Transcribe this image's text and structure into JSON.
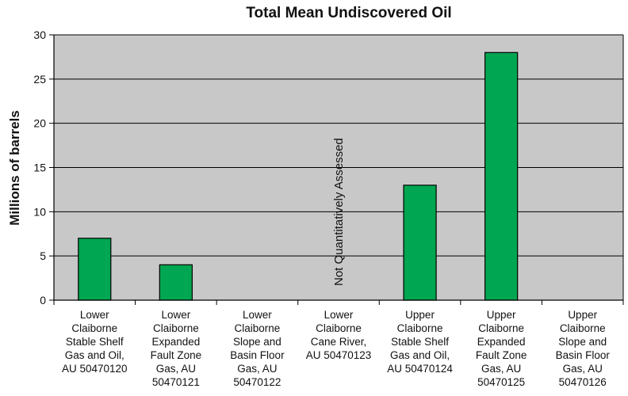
{
  "chart_data": {
    "type": "bar",
    "title": "Total Mean Undiscovered Oil",
    "ylabel": "Millions of barrels",
    "xlabel": "",
    "ylim": [
      0,
      30
    ],
    "yticks": [
      0,
      5,
      10,
      15,
      20,
      25,
      30
    ],
    "grid": true,
    "legend": "none",
    "categories": [
      [
        "Lower",
        "Claiborne",
        "Stable Shelf",
        "Gas and Oil,",
        "AU 50470120"
      ],
      [
        "Lower",
        "Claiborne",
        "Expanded",
        "Fault Zone",
        "Gas, AU",
        "50470121"
      ],
      [
        "Lower",
        "Claiborne",
        "Slope and",
        "Basin Floor",
        "Gas, AU",
        "50470122"
      ],
      [
        "Lower",
        "Claiborne",
        "Cane River,",
        "AU 50470123"
      ],
      [
        "Upper",
        "Claiborne",
        "Stable Shelf",
        "Gas and Oil,",
        "AU 50470124"
      ],
      [
        "Upper",
        "Claiborne",
        "Expanded",
        "Fault Zone",
        "Gas, AU",
        "50470125"
      ],
      [
        "Upper",
        "Claiborne",
        "Slope and",
        "Basin Floor",
        "Gas, AU",
        "50470126"
      ]
    ],
    "values": [
      7,
      4,
      0,
      null,
      13,
      28,
      0
    ],
    "annotations": [
      {
        "category_index": 3,
        "text": "Not Quantitatively Assessed"
      }
    ],
    "colors": {
      "bar": "#00a651",
      "plot_bg": "#c8c8c8",
      "grid": "#000000"
    }
  }
}
